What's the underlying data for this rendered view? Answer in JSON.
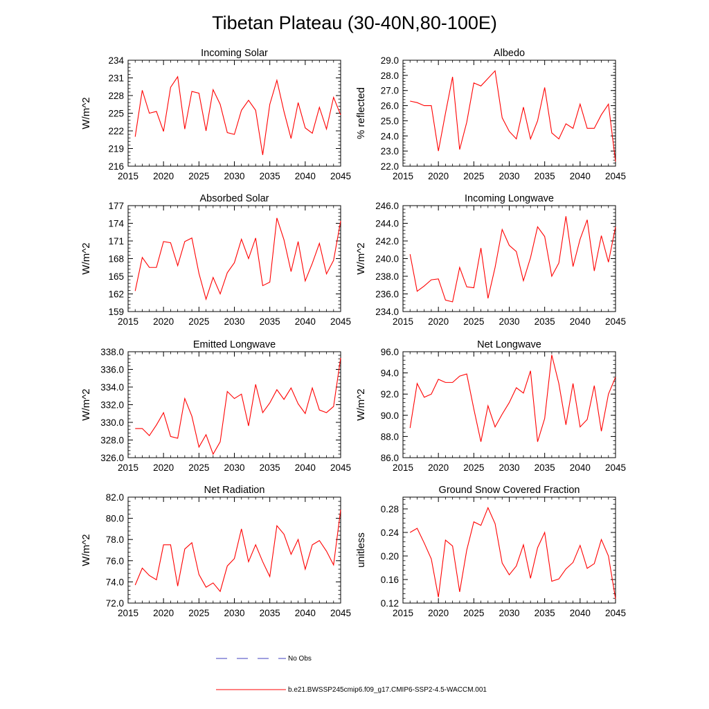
{
  "title": "Tibetan Plateau (30-40N,80-100E)",
  "colors": {
    "series": "#ff0000",
    "obs": "#3f3fbf",
    "axis": "#000000"
  },
  "legend": {
    "items": [
      {
        "label": "No Obs",
        "style": "dashed",
        "color": "#3f3fbf"
      },
      {
        "label": "b.e21.BWSSP245cmip6.f09_g17.CMIP6-SSP2-4.5-WACCM.001",
        "style": "solid",
        "color": "#ff0000"
      }
    ]
  },
  "chart_data": [
    {
      "type": "line",
      "title": "Incoming Solar",
      "ylabel": "W/m^2",
      "xlabel": "",
      "xlim": [
        2015,
        2045
      ],
      "ylim": [
        216,
        234
      ],
      "xticks": [
        "2015",
        "2020",
        "2025",
        "2030",
        "2035",
        "2040",
        "2045"
      ],
      "yticks": [
        "216",
        "219",
        "222",
        "225",
        "228",
        "231",
        "234"
      ],
      "x": [
        2016,
        2017,
        2018,
        2019,
        2020,
        2021,
        2022,
        2023,
        2024,
        2025,
        2026,
        2027,
        2028,
        2029,
        2030,
        2031,
        2032,
        2033,
        2034,
        2035,
        2036,
        2037,
        2038,
        2039,
        2040,
        2041,
        2042,
        2043,
        2044,
        2045
      ],
      "values": [
        221.0,
        228.9,
        225.0,
        225.3,
        221.9,
        229.4,
        231.2,
        222.3,
        228.7,
        228.4,
        222.0,
        229.0,
        226.5,
        221.7,
        221.4,
        225.5,
        227.2,
        225.5,
        217.9,
        226.5,
        230.6,
        225.3,
        220.7,
        226.8,
        222.5,
        221.6,
        226.0,
        222.3,
        227.7,
        224.7
      ]
    },
    {
      "type": "line",
      "title": "Albedo",
      "ylabel": "% reflected",
      "xlabel": "",
      "xlim": [
        2015,
        2045
      ],
      "ylim": [
        22,
        29
      ],
      "xticks": [
        "2015",
        "2020",
        "2025",
        "2030",
        "2035",
        "2040",
        "2045"
      ],
      "yticks": [
        "22.0",
        "23.0",
        "24.0",
        "25.0",
        "26.0",
        "27.0",
        "28.0",
        "29.0"
      ],
      "x": [
        2016,
        2017,
        2018,
        2019,
        2020,
        2021,
        2022,
        2023,
        2024,
        2025,
        2026,
        2027,
        2028,
        2029,
        2030,
        2031,
        2032,
        2033,
        2034,
        2035,
        2036,
        2037,
        2038,
        2039,
        2040,
        2041,
        2042,
        2043,
        2044,
        2045
      ],
      "values": [
        26.3,
        26.2,
        26.0,
        26.0,
        23.0,
        25.5,
        27.9,
        23.1,
        24.9,
        27.5,
        27.3,
        27.8,
        28.3,
        25.2,
        24.3,
        23.8,
        25.9,
        23.8,
        25.0,
        27.2,
        24.2,
        23.8,
        24.8,
        24.5,
        26.1,
        24.5,
        24.5,
        25.4,
        26.1,
        22.3
      ]
    },
    {
      "type": "line",
      "title": "Absorbed Solar",
      "ylabel": "W/m^2",
      "xlabel": "",
      "xlim": [
        2015,
        2045
      ],
      "ylim": [
        159,
        177
      ],
      "xticks": [
        "2015",
        "2020",
        "2025",
        "2030",
        "2035",
        "2040",
        "2045"
      ],
      "yticks": [
        "159",
        "162",
        "165",
        "168",
        "171",
        "174",
        "177"
      ],
      "x": [
        2016,
        2017,
        2018,
        2019,
        2020,
        2021,
        2022,
        2023,
        2024,
        2025,
        2026,
        2027,
        2028,
        2029,
        2030,
        2031,
        2032,
        2033,
        2034,
        2035,
        2036,
        2037,
        2038,
        2039,
        2040,
        2041,
        2042,
        2043,
        2044,
        2045
      ],
      "values": [
        162.5,
        168.2,
        166.5,
        166.5,
        170.9,
        170.7,
        166.8,
        170.9,
        171.5,
        165.5,
        161.1,
        164.8,
        162.0,
        165.6,
        167.3,
        171.3,
        168.0,
        171.5,
        163.4,
        164.0,
        174.9,
        171.2,
        165.8,
        170.9,
        164.2,
        167.2,
        170.6,
        165.4,
        167.7,
        174.4
      ]
    },
    {
      "type": "line",
      "title": "Incoming Longwave",
      "ylabel": "W/m^2",
      "xlabel": "",
      "xlim": [
        2015,
        2045
      ],
      "ylim": [
        234,
        246
      ],
      "xticks": [
        "2015",
        "2020",
        "2025",
        "2030",
        "2035",
        "2040",
        "2045"
      ],
      "yticks": [
        "234.0",
        "236.0",
        "238.0",
        "240.0",
        "242.0",
        "244.0",
        "246.0"
      ],
      "x": [
        2016,
        2017,
        2018,
        2019,
        2020,
        2021,
        2022,
        2023,
        2024,
        2025,
        2026,
        2027,
        2028,
        2029,
        2030,
        2031,
        2032,
        2033,
        2034,
        2035,
        2036,
        2037,
        2038,
        2039,
        2040,
        2041,
        2042,
        2043,
        2044,
        2045
      ],
      "values": [
        240.5,
        236.3,
        236.9,
        237.6,
        237.7,
        235.3,
        235.1,
        239.0,
        236.8,
        236.7,
        241.2,
        235.5,
        239.0,
        243.3,
        241.5,
        240.8,
        237.5,
        240.1,
        243.6,
        242.5,
        238.0,
        239.5,
        244.8,
        239.1,
        242.2,
        244.4,
        238.6,
        242.6,
        239.6,
        243.6
      ]
    },
    {
      "type": "line",
      "title": "Emitted Longwave",
      "ylabel": "W/m^2",
      "xlabel": "",
      "xlim": [
        2015,
        2045
      ],
      "ylim": [
        326,
        338
      ],
      "xticks": [
        "2015",
        "2020",
        "2025",
        "2030",
        "2035",
        "2040",
        "2045"
      ],
      "yticks": [
        "326.0",
        "328.0",
        "330.0",
        "332.0",
        "334.0",
        "336.0",
        "338.0"
      ],
      "x": [
        2016,
        2017,
        2018,
        2019,
        2020,
        2021,
        2022,
        2023,
        2024,
        2025,
        2026,
        2027,
        2028,
        2029,
        2030,
        2031,
        2032,
        2033,
        2034,
        2035,
        2036,
        2037,
        2038,
        2039,
        2040,
        2041,
        2042,
        2043,
        2044,
        2045
      ],
      "values": [
        329.3,
        329.3,
        328.5,
        329.7,
        331.1,
        328.4,
        328.2,
        332.7,
        330.7,
        327.2,
        328.6,
        326.4,
        327.8,
        333.5,
        332.7,
        333.2,
        329.6,
        334.3,
        331.1,
        332.2,
        333.7,
        332.6,
        333.9,
        332.1,
        331.0,
        333.9,
        331.4,
        331.1,
        331.8,
        337.3
      ]
    },
    {
      "type": "line",
      "title": "Net Longwave",
      "ylabel": "W/m^2",
      "xlabel": "",
      "xlim": [
        2015,
        2045
      ],
      "ylim": [
        86,
        96
      ],
      "xticks": [
        "2015",
        "2020",
        "2025",
        "2030",
        "2035",
        "2040",
        "2045"
      ],
      "yticks": [
        "86.0",
        "88.0",
        "90.0",
        "92.0",
        "94.0",
        "96.0"
      ],
      "x": [
        2016,
        2017,
        2018,
        2019,
        2020,
        2021,
        2022,
        2023,
        2024,
        2025,
        2026,
        2027,
        2028,
        2029,
        2030,
        2031,
        2032,
        2033,
        2034,
        2035,
        2036,
        2037,
        2038,
        2039,
        2040,
        2041,
        2042,
        2043,
        2044,
        2045
      ],
      "values": [
        88.8,
        93.0,
        91.7,
        92.0,
        93.4,
        93.1,
        93.1,
        93.7,
        93.9,
        90.6,
        87.5,
        90.9,
        88.9,
        90.1,
        91.2,
        92.6,
        92.1,
        94.2,
        87.5,
        89.7,
        95.7,
        93.0,
        89.1,
        93.0,
        88.9,
        89.6,
        92.8,
        88.5,
        92.0,
        93.6
      ]
    },
    {
      "type": "line",
      "title": "Net Radiation",
      "ylabel": "W/m^2",
      "xlabel": "",
      "xlim": [
        2015,
        2045
      ],
      "ylim": [
        72,
        82
      ],
      "xticks": [
        "2015",
        "2020",
        "2025",
        "2030",
        "2035",
        "2040",
        "2045"
      ],
      "yticks": [
        "72.0",
        "74.0",
        "76.0",
        "78.0",
        "80.0",
        "82.0"
      ],
      "x": [
        2016,
        2017,
        2018,
        2019,
        2020,
        2021,
        2022,
        2023,
        2024,
        2025,
        2026,
        2027,
        2028,
        2029,
        2030,
        2031,
        2032,
        2033,
        2034,
        2035,
        2036,
        2037,
        2038,
        2039,
        2040,
        2041,
        2042,
        2043,
        2044,
        2045
      ],
      "values": [
        73.7,
        75.3,
        74.6,
        74.2,
        77.5,
        77.5,
        73.6,
        77.1,
        77.7,
        74.7,
        73.5,
        73.9,
        73.1,
        75.5,
        76.2,
        79.0,
        75.9,
        77.5,
        75.9,
        74.5,
        79.3,
        78.5,
        76.6,
        78.0,
        75.2,
        77.5,
        77.9,
        76.9,
        75.6,
        80.8
      ]
    },
    {
      "type": "line",
      "title": "Ground Snow Covered Fraction",
      "ylabel": "unitless",
      "xlabel": "",
      "xlim": [
        2015,
        2045
      ],
      "ylim": [
        0.12,
        0.3
      ],
      "xticks": [
        "2015",
        "2020",
        "2025",
        "2030",
        "2035",
        "2040",
        "2045"
      ],
      "yticks": [
        "0.12",
        "0.16",
        "0.20",
        "0.24",
        "0.28"
      ],
      "x": [
        2016,
        2017,
        2018,
        2019,
        2020,
        2021,
        2022,
        2023,
        2024,
        2025,
        2026,
        2027,
        2028,
        2029,
        2030,
        2031,
        2032,
        2033,
        2034,
        2035,
        2036,
        2037,
        2038,
        2039,
        2040,
        2041,
        2042,
        2043,
        2044,
        2045
      ],
      "values": [
        0.24,
        0.247,
        0.222,
        0.195,
        0.13,
        0.227,
        0.217,
        0.139,
        0.21,
        0.258,
        0.252,
        0.282,
        0.255,
        0.188,
        0.168,
        0.183,
        0.219,
        0.162,
        0.214,
        0.24,
        0.157,
        0.161,
        0.178,
        0.189,
        0.218,
        0.179,
        0.187,
        0.228,
        0.2,
        0.127
      ]
    }
  ]
}
